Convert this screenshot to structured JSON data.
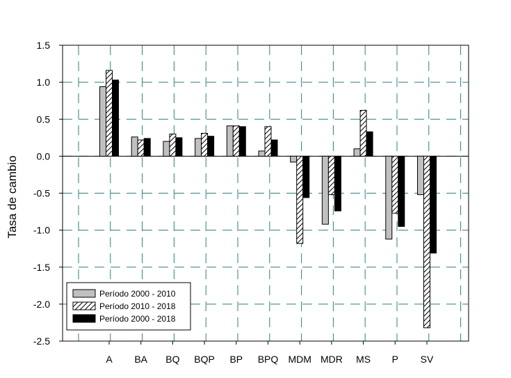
{
  "chart_data": {
    "type": "bar",
    "ylabel": "Tasa de cambio",
    "xlabel": "",
    "ylim": [
      -2.5,
      1.5
    ],
    "yticks": [
      "1.5",
      "1.0",
      "0.5",
      "0.0",
      "-0.5",
      "-1.0",
      "-1.5",
      "-2.0",
      "-2.5"
    ],
    "grid": true,
    "legend_position": "bottom-left",
    "categories": [
      "A",
      "BA",
      "BQ",
      "BQP",
      "BP",
      "BPQ",
      "MDM",
      "MDR",
      "MS",
      "P",
      "SV"
    ],
    "series": [
      {
        "name": "Período 2000 - 2010",
        "style": "solid",
        "color": "#c0c0c0",
        "values": [
          0.94,
          0.26,
          0.2,
          0.24,
          0.41,
          0.07,
          -0.08,
          -0.92,
          0.1,
          -1.12,
          -0.52
        ]
      },
      {
        "name": "Período 2010 - 2018",
        "style": "hatched",
        "color": "#ffffff",
        "values": [
          1.16,
          0.22,
          0.3,
          0.31,
          0.41,
          0.4,
          -1.18,
          -0.52,
          0.62,
          -0.77,
          -2.32
        ]
      },
      {
        "name": "Período 2000 - 2018",
        "style": "solid",
        "color": "#000000",
        "values": [
          1.03,
          0.24,
          0.25,
          0.27,
          0.4,
          0.22,
          -0.56,
          -0.74,
          0.33,
          -0.95,
          -1.31
        ]
      }
    ],
    "grid_color": "#2e7d7d"
  }
}
